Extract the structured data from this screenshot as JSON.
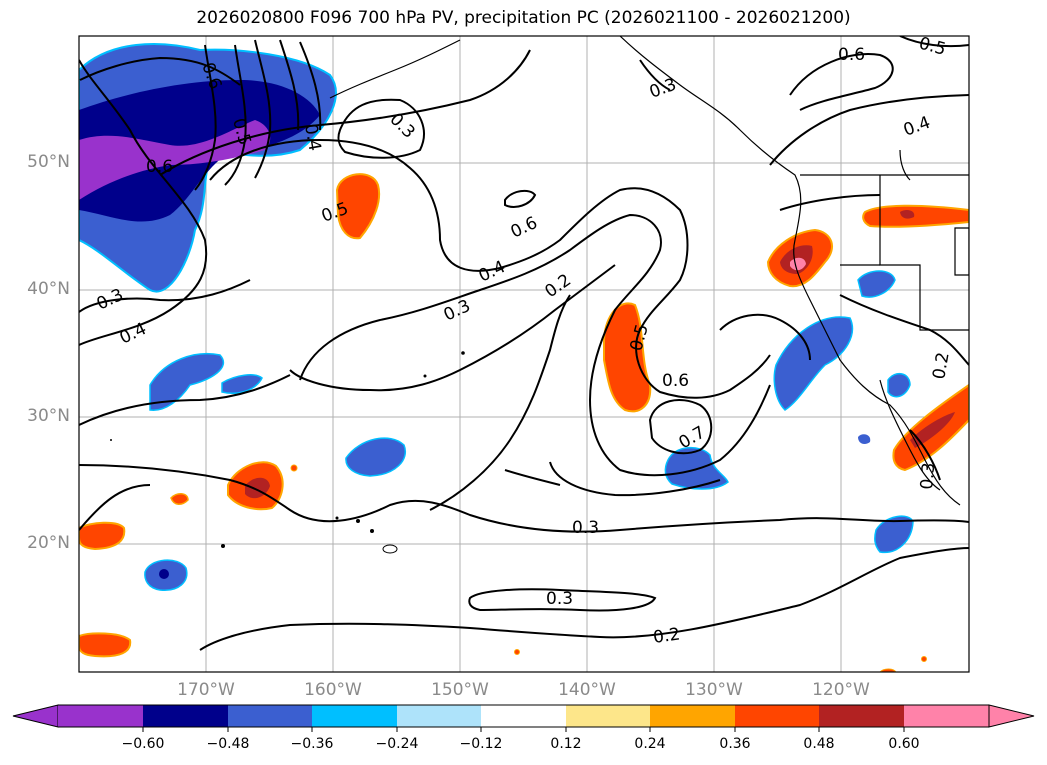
{
  "title": "2026020800 F096 700 hPa PV, precipitation PC (2026021100 - 2026021200)",
  "latitude_labels": [
    "50°N",
    "40°N",
    "30°N",
    "20°N"
  ],
  "longitude_labels": [
    "170°W",
    "160°W",
    "150°W",
    "140°W",
    "130°W",
    "120°W"
  ],
  "contour_labels": [
    "0.6",
    "0.5",
    "0.4",
    "0.3",
    "0.3",
    "0.6",
    "0.5",
    "0.3",
    "0.4",
    "0.6",
    "0.4",
    "0.2",
    "0.3",
    "0.5",
    "0.6",
    "0.7",
    "0.3",
    "0.3",
    "0.2",
    "0.2",
    "0.3",
    "0.4"
  ],
  "colorbar": {
    "ticks": [
      "−0.60",
      "−0.48",
      "−0.36",
      "−0.24",
      "−0.12",
      "0.12",
      "0.24",
      "0.36",
      "0.48",
      "0.60"
    ],
    "colors": [
      "#9932cc",
      "#00008b",
      "#3b5fd0",
      "#00bfff",
      "#aee3fa",
      "#ffffff",
      "#fde68a",
      "#ffa500",
      "#ff4500",
      "#b22222",
      "#ff82a9"
    ]
  }
}
